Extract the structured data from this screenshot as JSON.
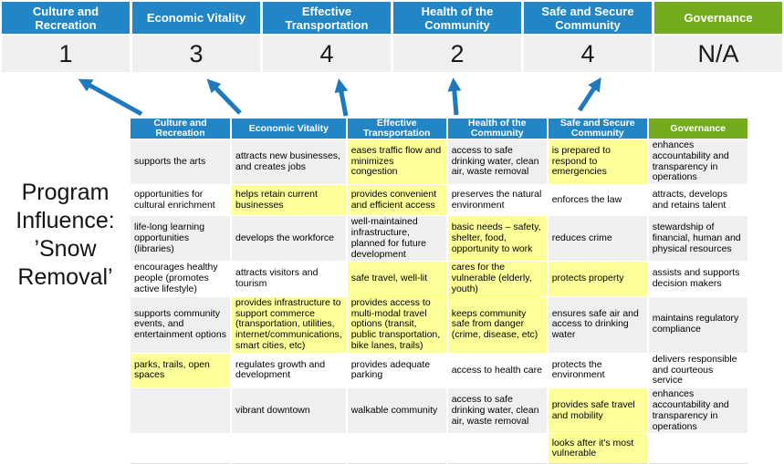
{
  "title": {
    "text": "Program\nInfluence:\n’Snow\nRemoval’"
  },
  "colors": {
    "blue": "#2185C6",
    "green": "#74AA1E",
    "highlight": "#FFFF99",
    "band": "#EFEFEF",
    "score_bg": "#EFEFEF",
    "arrow": "#1F79BF"
  },
  "scoreboard": {
    "items": [
      {
        "label": "Culture and Recreation",
        "score": "1",
        "color": "blue"
      },
      {
        "label": "Economic Vitality",
        "score": "3",
        "color": "blue"
      },
      {
        "label": "Effective Transportation",
        "score": "4",
        "color": "blue"
      },
      {
        "label": "Health of the Community",
        "score": "2",
        "color": "blue"
      },
      {
        "label": "Safe and Secure Community",
        "score": "4",
        "color": "blue"
      },
      {
        "label": "Governance",
        "score": "N/A",
        "color": "green"
      }
    ]
  },
  "matrix": {
    "columns": [
      {
        "header": "Culture and Recreation",
        "header_color": "blue",
        "cells": [
          {
            "text": "supports the arts",
            "highlighted": false
          },
          {
            "text": "opportunities for cultural enrichment",
            "highlighted": false
          },
          {
            "text": "life-long learning opportunities (libraries)",
            "highlighted": false
          },
          {
            "text": "encourages healthy people (promotes active lifestyle)",
            "highlighted": false
          },
          {
            "text": "supports community events, and entertainment options",
            "highlighted": false
          },
          {
            "text": "parks, trails, open spaces",
            "highlighted": true
          },
          {
            "text": "",
            "highlighted": false
          },
          {
            "text": "",
            "highlighted": false
          }
        ]
      },
      {
        "header": "Economic Vitality",
        "header_color": "blue",
        "cells": [
          {
            "text": "attracts new businesses, and creates jobs",
            "highlighted": false
          },
          {
            "text": "helps retain current businesses",
            "highlighted": true
          },
          {
            "text": "develops the workforce",
            "highlighted": false
          },
          {
            "text": "attracts visitors and tourism",
            "highlighted": false
          },
          {
            "text": "provides infrastructure to support commerce (transportation, utilities, internet/communications, smart cities, etc)",
            "highlighted": true
          },
          {
            "text": "regulates growth and development",
            "highlighted": false
          },
          {
            "text": "vibrant downtown",
            "highlighted": false
          },
          {
            "text": "",
            "highlighted": false
          }
        ]
      },
      {
        "header": "Effective Transportation",
        "header_color": "blue",
        "cells": [
          {
            "text": "eases traffic flow and minimizes congestion",
            "highlighted": true
          },
          {
            "text": "provides convenient and efficient access",
            "highlighted": true
          },
          {
            "text": "well-maintained infrastructure, planned for future development",
            "highlighted": false
          },
          {
            "text": "safe travel, well-lit",
            "highlighted": true
          },
          {
            "text": "provides access to multi-modal travel options (transit, public transportation, bike lanes, trails)",
            "highlighted": true
          },
          {
            "text": "provides adequate parking",
            "highlighted": false
          },
          {
            "text": "walkable community",
            "highlighted": false
          },
          {
            "text": "",
            "highlighted": false
          }
        ]
      },
      {
        "header": "Health of the Community",
        "header_color": "blue",
        "cells": [
          {
            "text": "access to safe drinking water, clean air, waste removal",
            "highlighted": false
          },
          {
            "text": "preserves the natural environment",
            "highlighted": false
          },
          {
            "text": "basic needs – safety, shelter, food, opportunity to work",
            "highlighted": true
          },
          {
            "text": "cares for the vulnerable (elderly, youth)",
            "highlighted": true
          },
          {
            "text": "keeps community safe from danger (crime, disease, etc)",
            "highlighted": true
          },
          {
            "text": "access to health care",
            "highlighted": false
          },
          {
            "text": "access to safe drinking water, clean air, waste removal",
            "highlighted": false
          },
          {
            "text": "",
            "highlighted": false
          }
        ]
      },
      {
        "header": "Safe and Secure Community",
        "header_color": "blue",
        "cells": [
          {
            "text": "is prepared to respond to emergencies",
            "highlighted": true
          },
          {
            "text": "enforces the law",
            "highlighted": false
          },
          {
            "text": "reduces crime",
            "highlighted": false
          },
          {
            "text": "protects property",
            "highlighted": true
          },
          {
            "text": "ensures safe air and access to drinking water",
            "highlighted": false
          },
          {
            "text": "protects the environment",
            "highlighted": false
          },
          {
            "text": "provides safe travel and mobility",
            "highlighted": true
          },
          {
            "text": "looks after it's most vulnerable",
            "highlighted": true
          }
        ]
      },
      {
        "header": "Governance",
        "header_color": "green",
        "cells": [
          {
            "text": "enhances accountability and transparency in operations",
            "highlighted": false
          },
          {
            "text": "attracts, develops and retains talent",
            "highlighted": false
          },
          {
            "text": "stewardship of financial, human and physical resources",
            "highlighted": false
          },
          {
            "text": "assists and supports decision makers",
            "highlighted": false
          },
          {
            "text": "maintains regulatory compliance",
            "highlighted": false
          },
          {
            "text": "delivers responsible and courteous service",
            "highlighted": false
          },
          {
            "text": "enhances accountability and transparency in operations",
            "highlighted": false
          },
          {
            "text": "",
            "highlighted": false
          }
        ]
      }
    ]
  }
}
